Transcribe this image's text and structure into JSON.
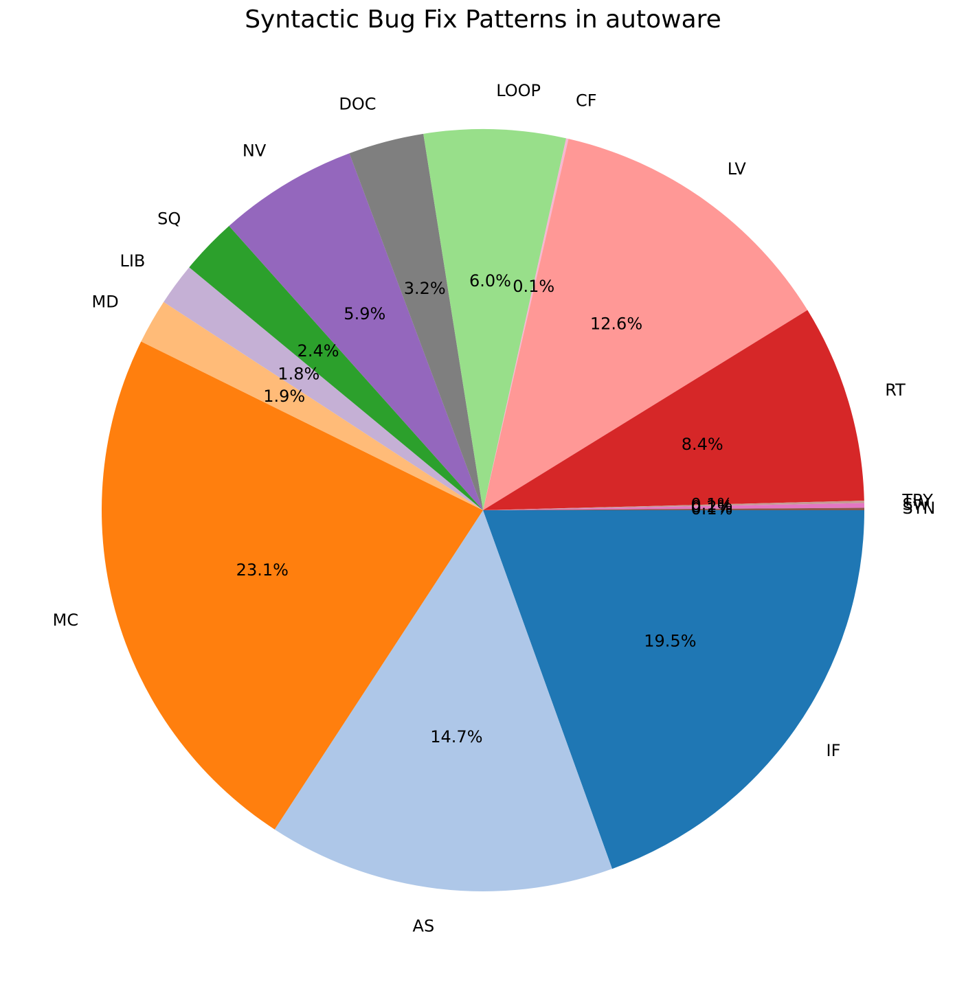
{
  "chart_data": {
    "type": "pie",
    "title": "Syntactic Bug Fix Patterns in autoware",
    "start_angle_deg": 0,
    "direction": "clockwise",
    "categories": [
      "IF",
      "AS",
      "MC",
      "MD",
      "LIB",
      "SQ",
      "NV",
      "DOC",
      "LOOP",
      "CF",
      "LV",
      "RT",
      "TRY",
      "SW",
      "SYN"
    ],
    "values": [
      19.5,
      14.7,
      23.1,
      1.9,
      1.8,
      2.4,
      5.9,
      3.2,
      6.0,
      0.1,
      12.6,
      8.4,
      0.1,
      0.2,
      0.1
    ],
    "pct_labels": [
      "19.5%",
      "14.7%",
      "23.1%",
      "1.9%",
      "1.8%",
      "2.4%",
      "5.9%",
      "3.2%",
      "6.0%",
      "0.1%",
      "12.6%",
      "8.4%",
      "0.1%",
      "0.2%",
      "0.1%"
    ],
    "colors": [
      "#1f77b4",
      "#aec7e8",
      "#ff7f0e",
      "#ffbb78",
      "#c5b0d5",
      "#2ca02c",
      "#9467bd",
      "#7f7f7f",
      "#98df8a",
      "#f7b6d2",
      "#ff9896",
      "#d62728",
      "#c49c94",
      "#e377c2",
      "#8c564b"
    ]
  }
}
